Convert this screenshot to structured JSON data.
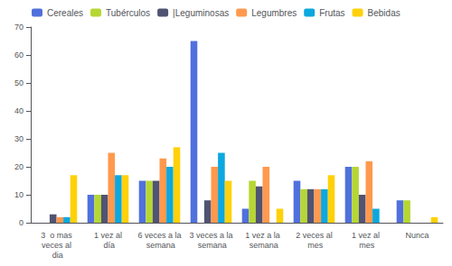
{
  "chart_data": {
    "type": "bar",
    "categories": [
      "3  o mas\nveces al\n dia",
      "1 vez al\n día",
      "6 veces a la\n semana",
      "3 veces a la\n semana",
      "1 vez a la\n semana",
      "2 veces al\n mes",
      "1 vez al\n mes",
      "Nunca"
    ],
    "series": [
      {
        "name": "Cereales",
        "values": [
          0,
          10,
          15,
          65,
          5,
          15,
          20,
          8
        ]
      },
      {
        "name": "Tubérculos",
        "values": [
          0,
          10,
          15,
          0,
          15,
          12,
          20,
          8
        ]
      },
      {
        "name": "|Leguminosas",
        "values": [
          3,
          10,
          15,
          8,
          13,
          12,
          10,
          0
        ]
      },
      {
        "name": "Legumbres",
        "values": [
          2,
          25,
          23,
          20,
          20,
          12,
          22,
          0
        ]
      },
      {
        "name": "Frutas",
        "values": [
          2,
          17,
          20,
          25,
          0,
          12,
          5,
          0
        ]
      },
      {
        "name": "Bebidas",
        "values": [
          17,
          17,
          27,
          15,
          5,
          17,
          0,
          2
        ]
      }
    ],
    "ylim": [
      0,
      70
    ],
    "yticks": [
      0,
      10,
      20,
      30,
      40,
      50,
      60,
      70
    ],
    "grid": false,
    "legend": "upper left"
  }
}
